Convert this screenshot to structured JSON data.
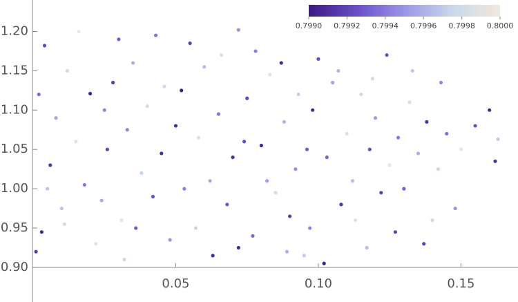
{
  "chart_data": {
    "type": "scatter",
    "x": [
      0.004,
      0.012,
      0.02,
      0.008,
      0.015,
      0.006,
      0.018,
      0.01,
      0.003,
      0.022,
      0.03,
      0.035,
      0.028,
      0.04,
      0.033,
      0.045,
      0.038,
      0.042,
      0.031,
      0.048,
      0.055,
      0.06,
      0.052,
      0.065,
      0.058,
      0.07,
      0.062,
      0.068,
      0.057,
      0.072,
      0.078,
      0.083,
      0.075,
      0.088,
      0.08,
      0.092,
      0.085,
      0.09,
      0.077,
      0.095,
      0.1,
      0.105,
      0.098,
      0.11,
      0.103,
      0.112,
      0.108,
      0.097,
      0.115,
      0.118,
      0.12,
      0.125,
      0.122,
      0.128,
      0.132,
      0.13,
      0.135,
      0.138,
      0.142,
      0.145,
      0.15,
      0.155,
      0.16,
      0.163,
      0.162,
      0.148,
      0.14,
      0.127,
      0.117,
      0.102,
      0.002,
      0.005,
      0.001,
      0.016,
      0.025,
      0.026,
      0.024,
      0.036,
      0.046,
      0.05,
      0.053,
      0.066,
      0.074,
      0.082,
      0.087,
      0.093,
      0.096,
      0.107,
      0.113,
      0.072,
      0.043,
      0.119,
      0.124,
      0.133,
      0.143,
      0.137,
      0.011,
      0.063,
      0.089,
      0.032
    ],
    "values": [
      1.182,
      1.15,
      1.121,
      1.09,
      1.06,
      1.03,
      1.005,
      0.975,
      0.945,
      0.93,
      1.19,
      1.16,
      1.135,
      1.105,
      1.075,
      1.045,
      1.02,
      0.99,
      0.96,
      0.935,
      1.185,
      1.155,
      1.125,
      1.095,
      1.065,
      1.04,
      1.01,
      0.98,
      0.95,
      0.925,
      1.175,
      1.145,
      1.115,
      1.085,
      1.055,
      1.025,
      0.995,
      0.965,
      0.94,
      0.915,
      1.165,
      1.135,
      1.1,
      1.07,
      1.04,
      1.01,
      0.98,
      0.95,
      1.12,
      1.05,
      1.09,
      1.03,
      0.995,
      1.065,
      1.11,
      1.0,
      1.045,
      1.085,
      1.025,
      1.07,
      1.05,
      1.08,
      1.1,
      1.063,
      1.035,
      0.975,
      0.96,
      0.945,
      0.925,
      0.905,
      1.12,
      1.0,
      0.92,
      1.2,
      1.1,
      1.05,
      0.985,
      0.95,
      1.13,
      1.08,
      1.0,
      1.17,
      1.06,
      1.01,
      1.16,
      1.12,
      1.05,
      1.15,
      0.96,
      1.202,
      1.195,
      1.14,
      1.17,
      1.15,
      1.135,
      0.93,
      0.955,
      0.915,
      0.92,
      0.91
    ],
    "color_values": [
      0.79921,
      0.79978,
      0.79903,
      0.79955,
      0.79987,
      0.79912,
      0.7994,
      0.79968,
      0.79905,
      0.79992,
      0.7993,
      0.7996,
      0.79915,
      0.79982,
      0.79945,
      0.79908,
      0.79972,
      0.79925,
      0.79995,
      0.7995,
      0.79918,
      0.79965,
      0.79902,
      0.79938,
      0.79985,
      0.7991,
      0.79958,
      0.79928,
      0.79975,
      0.79906,
      0.79942,
      0.7999,
      0.7992,
      0.79962,
      0.79904,
      0.79948,
      0.7998,
      0.79916,
      0.79935,
      0.7997,
      0.79926,
      0.79955,
      0.79908,
      0.79988,
      0.79932,
      0.79966,
      0.79913,
      0.79944,
      0.79978,
      0.79922,
      0.79952,
      0.79996,
      0.79918,
      0.7994,
      0.79985,
      0.7993,
      0.7996,
      0.79912,
      0.79975,
      0.79936,
      0.79992,
      0.79925,
      0.79905,
      0.7997,
      0.7991,
      0.7995,
      0.79982,
      0.7992,
      0.79965,
      0.79902,
      0.79935,
      0.79968,
      0.79915,
      0.79998,
      0.79945,
      0.79918,
      0.79958,
      0.79928,
      0.79976,
      0.7991,
      0.79942,
      0.79988,
      0.79922,
      0.79954,
      0.79906,
      0.79972,
      0.7993,
      0.79962,
      0.7999,
      0.7995,
      0.79938,
      0.7998,
      0.79925,
      0.79968,
      0.79945,
      0.79916,
      0.79982,
      0.79908,
      0.7996,
      0.79975
    ],
    "xlim": [
      0,
      0.17
    ],
    "ylim": [
      0.856,
      1.24
    ],
    "xticks": [
      0.05,
      {
        "value": 0.1,
        "label": "0.10"
      },
      0.15
    ],
    "yticks": [
      {
        "value": 0.9,
        "label": "0.90"
      },
      0.95,
      {
        "value": 1.0,
        "label": "1.00"
      },
      1.05,
      {
        "value": 1.1,
        "label": "1.10"
      },
      1.15,
      {
        "value": 1.2,
        "label": "1.20"
      }
    ],
    "colorbar": {
      "lim": [
        0.799,
        0.8
      ],
      "ticks": [
        {
          "value": 0.799,
          "label": "0.7990"
        },
        0.7992,
        0.7994,
        0.7996,
        0.7998,
        {
          "value": 0.8,
          "label": "0.8000"
        }
      ],
      "colors": [
        "#3d1a82",
        "#6a4fc7",
        "#9a95e6",
        "#c8d8ea",
        "#f0e8dc"
      ]
    }
  }
}
